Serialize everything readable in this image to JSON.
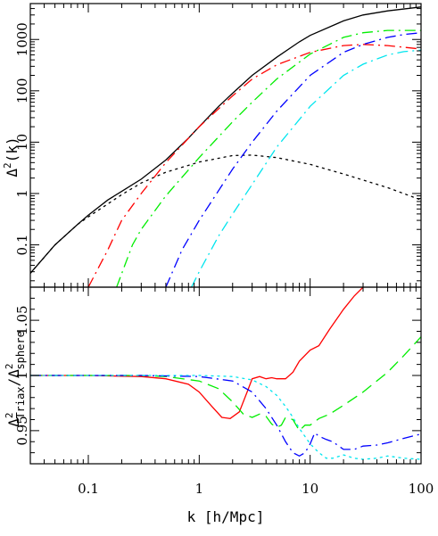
{
  "chart_data": [
    {
      "type": "line",
      "panel": "top",
      "xscale": "log",
      "yscale": "log",
      "xlim": [
        0.03,
        100
      ],
      "ylim": [
        0.015,
        5000
      ],
      "ylabel": "Δ²(k)",
      "x_ticks": [
        "0.1",
        "1",
        "10",
        "100"
      ],
      "y_ticks": [
        "0.1",
        "1",
        "10",
        "100",
        "1000"
      ],
      "series": [
        {
          "style": "solid",
          "color": "#000000",
          "width": 2.4,
          "x": [
            0.03,
            0.05,
            0.08,
            0.1,
            0.15,
            0.2,
            0.3,
            0.5,
            0.8,
            1,
            1.5,
            2,
            3,
            5,
            8,
            10,
            20,
            30,
            50,
            100
          ],
          "y": [
            0.028,
            0.1,
            0.25,
            0.38,
            0.75,
            1.1,
            1.9,
            4.5,
            12,
            20,
            50,
            90,
            200,
            450,
            900,
            1200,
            2300,
            3000,
            3600,
            4300
          ]
        },
        {
          "style": "dotted",
          "color": "#000000",
          "width": 2.4,
          "x": [
            0.03,
            0.05,
            0.08,
            0.1,
            0.2,
            0.3,
            0.5,
            1,
            2,
            3,
            5,
            10,
            20,
            50,
            100
          ],
          "y": [
            0.028,
            0.1,
            0.25,
            0.35,
            0.95,
            1.6,
            2.6,
            4.1,
            5.5,
            5.6,
            5.0,
            3.7,
            2.4,
            1.3,
            0.75
          ]
        },
        {
          "style": "dashdot",
          "color": "#ff0000",
          "width": 1.3,
          "x": [
            0.1,
            0.15,
            0.2,
            0.3,
            0.5,
            1,
            2,
            3,
            5,
            10,
            20,
            30,
            50,
            100
          ],
          "y": [
            0.015,
            0.08,
            0.3,
            1.0,
            4,
            20,
            80,
            170,
            320,
            560,
            760,
            800,
            760,
            650
          ]
        },
        {
          "style": "dashdot",
          "color": "#00ee00",
          "width": 1.3,
          "x": [
            0.18,
            0.25,
            0.3,
            0.5,
            1,
            2,
            3,
            5,
            10,
            20,
            30,
            50,
            100
          ],
          "y": [
            0.015,
            0.1,
            0.2,
            0.9,
            5,
            25,
            60,
            170,
            520,
            1100,
            1350,
            1500,
            1500
          ]
        },
        {
          "style": "dashdot",
          "color": "#0000ff",
          "width": 1.3,
          "x": [
            0.5,
            0.7,
            1,
            2,
            3,
            5,
            10,
            20,
            30,
            50,
            70,
            100
          ],
          "y": [
            0.015,
            0.08,
            0.3,
            3,
            10,
            40,
            200,
            560,
            800,
            1100,
            1250,
            1350
          ]
        },
        {
          "style": "dashdot",
          "color": "#00e5ee",
          "width": 1.3,
          "x": [
            0.85,
            1,
            1.5,
            2,
            3,
            5,
            10,
            20,
            30,
            50,
            70,
            100
          ],
          "y": [
            0.015,
            0.03,
            0.15,
            0.4,
            1.5,
            8,
            50,
            200,
            330,
            500,
            580,
            620
          ]
        }
      ]
    },
    {
      "type": "line",
      "panel": "bottom",
      "xscale": "log",
      "yscale": "linear",
      "xlim": [
        0.03,
        100
      ],
      "ylim": [
        0.92,
        1.08
      ],
      "xlabel": "k [h/Mpc]",
      "ylabel": "Δ²Triax/Δ²sphere",
      "x_ticks": [
        "0.1",
        "1",
        "10",
        "100"
      ],
      "y_ticks": [
        "0.95",
        "1",
        "1.05"
      ],
      "series": [
        {
          "style": "solid",
          "color": "#ff0000",
          "width": 1.3,
          "x": [
            0.03,
            0.1,
            0.3,
            0.5,
            0.8,
            1,
            1.3,
            1.6,
            1.9,
            2.3,
            2.7,
            3.0,
            3.5,
            4.0,
            4.5,
            5,
            6,
            7,
            8,
            10,
            12,
            15,
            20,
            25,
            30
          ],
          "y": [
            1.0,
            1.0,
            0.999,
            0.997,
            0.992,
            0.985,
            0.972,
            0.962,
            0.961,
            0.967,
            0.985,
            0.997,
            0.999,
            0.997,
            0.998,
            0.997,
            0.997,
            1.003,
            1.013,
            1.023,
            1.027,
            1.042,
            1.06,
            1.072,
            1.08
          ]
        },
        {
          "style": "dashed",
          "color": "#00ee00",
          "width": 1.3,
          "x": [
            0.03,
            0.1,
            0.3,
            0.5,
            1,
            1.5,
            2,
            2.5,
            3,
            3.5,
            4,
            4.5,
            5,
            5.5,
            6,
            7,
            8,
            9,
            10,
            12,
            15,
            20,
            30,
            50,
            70,
            100
          ],
          "y": [
            1.0,
            1.0,
            1.0,
            0.999,
            0.995,
            0.988,
            0.976,
            0.965,
            0.962,
            0.965,
            0.963,
            0.956,
            0.953,
            0.955,
            0.962,
            0.96,
            0.95,
            0.955,
            0.955,
            0.961,
            0.965,
            0.973,
            0.985,
            1.003,
            1.018,
            1.035
          ]
        },
        {
          "style": "dashdot",
          "color": "#0000ff",
          "width": 1.3,
          "x": [
            0.03,
            0.1,
            0.3,
            1,
            2,
            3,
            4,
            5,
            6,
            7,
            8,
            9,
            10,
            11,
            12,
            14,
            16,
            20,
            25,
            30,
            40,
            50,
            70,
            100
          ],
          "y": [
            1.0,
            1.0,
            1.0,
            0.999,
            0.995,
            0.985,
            0.97,
            0.955,
            0.94,
            0.93,
            0.927,
            0.93,
            0.938,
            0.948,
            0.945,
            0.942,
            0.94,
            0.933,
            0.933,
            0.936,
            0.937,
            0.939,
            0.943,
            0.947
          ]
        },
        {
          "style": "dotted",
          "color": "#00e5ee",
          "width": 1.3,
          "x": [
            0.03,
            0.1,
            0.3,
            1,
            2,
            3,
            4,
            5,
            6,
            7,
            8,
            10,
            12,
            14,
            16,
            20,
            25,
            30,
            40,
            50,
            70,
            100
          ],
          "y": [
            1.0,
            1.0,
            1.0,
            1.0,
            0.999,
            0.996,
            0.99,
            0.982,
            0.972,
            0.962,
            0.952,
            0.938,
            0.93,
            0.925,
            0.925,
            0.928,
            0.925,
            0.924,
            0.925,
            0.927,
            0.925,
            0.924
          ]
        }
      ]
    }
  ]
}
